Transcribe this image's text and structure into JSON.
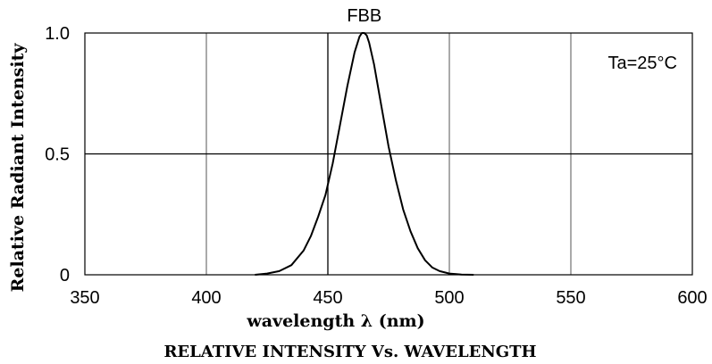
{
  "chart_data": {
    "type": "line",
    "title": "FBB",
    "xlabel": "wavelength λ (nm)",
    "ylabel": "Relative Radiant Intensity",
    "caption": "RELATIVE INTENSITY Vs. WAVELENGTH",
    "annotation": "Ta=25°C",
    "xlim": [
      350,
      600
    ],
    "ylim": [
      0,
      1.0
    ],
    "x_ticks": [
      350,
      400,
      450,
      500,
      550,
      600
    ],
    "x_tick_labels": [
      "350",
      "400",
      "450",
      "500",
      "550",
      "600"
    ],
    "y_ticks": [
      0,
      0.5,
      1.0
    ],
    "y_tick_labels": [
      "0",
      "0.5",
      "1.0"
    ],
    "grid": true,
    "series": [
      {
        "x": [
          420,
          425,
          430,
          435,
          440,
          443,
          446,
          449,
          452,
          455,
          458,
          461,
          463,
          464,
          465,
          466,
          467,
          469,
          472,
          475,
          478,
          481,
          484,
          487,
          490,
          493,
          496,
          500,
          505,
          510
        ],
        "y": [
          0.0,
          0.005,
          0.015,
          0.04,
          0.1,
          0.16,
          0.24,
          0.33,
          0.46,
          0.62,
          0.78,
          0.92,
          0.985,
          1.0,
          1.0,
          0.99,
          0.96,
          0.87,
          0.7,
          0.53,
          0.39,
          0.27,
          0.18,
          0.11,
          0.06,
          0.03,
          0.015,
          0.005,
          0.001,
          0.0
        ]
      }
    ]
  }
}
